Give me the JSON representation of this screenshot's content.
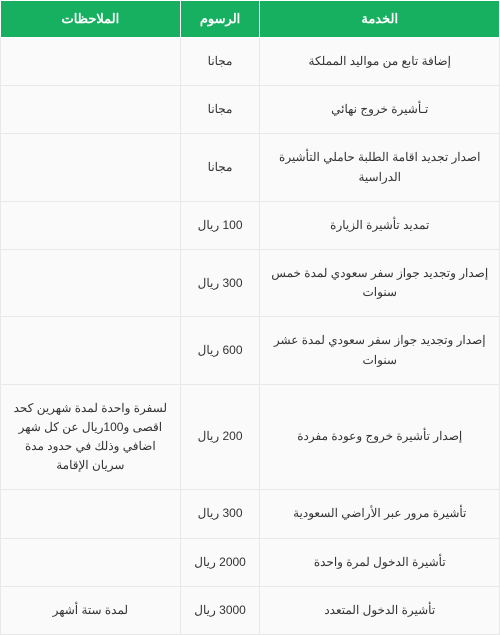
{
  "table": {
    "columns": [
      {
        "key": "service",
        "label": "الخدمة",
        "class": "col-service"
      },
      {
        "key": "fee",
        "label": "الرسوم",
        "class": "col-fee"
      },
      {
        "key": "notes",
        "label": "الملاحظات",
        "class": "col-notes"
      }
    ],
    "rows": [
      {
        "service": "إضافة تابع من مواليد المملكة",
        "fee": "مجانا",
        "notes": ""
      },
      {
        "service": "تـأشيرة خروج نهائي",
        "fee": "مجانا",
        "notes": ""
      },
      {
        "service": "اصدار تجديد اقامة الطلبة حاملي التأشيرة الدراسية",
        "fee": "مجانا",
        "notes": ""
      },
      {
        "service": "تمديد تأشيرة الزيارة",
        "fee": "100 ريال",
        "notes": ""
      },
      {
        "service": "إصدار وتجديد جواز سفر سعودي لمدة خمس سنوات",
        "fee": "300 ريال",
        "notes": ""
      },
      {
        "service": "إصدار وتجديد جواز سفر سعودي لمدة عشر سنوات",
        "fee": "600 ريال",
        "notes": ""
      },
      {
        "service": "إصدار تأشيرة خروج وعودة مفردة",
        "fee": "200 ريال",
        "notes": "لسفرة واحدة لمدة شهرين كحد اقصى و100ريال عن كل شهر اضافي وذلك في حدود مدة سريان الإقامة"
      },
      {
        "service": "تأشيرة مرور عبر الأراضي السعودية",
        "fee": "300 ريال",
        "notes": ""
      },
      {
        "service": "تأشيرة الدخول لمرة واحدة",
        "fee": "2000 ريال",
        "notes": ""
      },
      {
        "service": "تأشيرة الدخول المتعدد",
        "fee": "3000 ريال",
        "notes": "لمدة ستة أشهر"
      }
    ],
    "styling": {
      "header_bg": "#17b060",
      "header_fg": "#ffffff",
      "cell_bg": "#fafafa",
      "border_color": "#e8e8e8",
      "font_family": "Tahoma",
      "font_size_header": 13,
      "font_size_cell": 12,
      "direction": "rtl"
    }
  }
}
